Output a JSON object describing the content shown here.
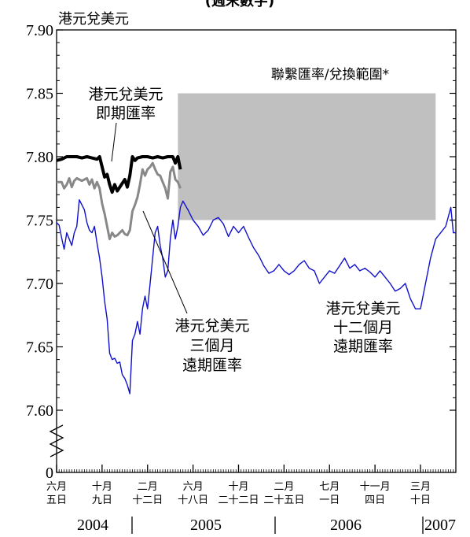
{
  "header": {
    "title": "(週末數字)",
    "y_unit": "港元兌美元"
  },
  "band_label": "聯繫匯率/兌換範圍*",
  "annotations": {
    "spot": [
      "港元兌美元",
      "即期匯率"
    ],
    "three_month": [
      "港元兌美元",
      "三個月",
      "遠期匯率"
    ],
    "twelve_month": [
      "港元兌美元",
      "十二個月",
      "遠期匯率"
    ]
  },
  "x_ticks": [
    {
      "line1": "六月",
      "line2": "五日",
      "x": 0
    },
    {
      "line1": "十月",
      "line2": "九日",
      "x": 18
    },
    {
      "line1": "二月",
      "line2": "十二日",
      "x": 36
    },
    {
      "line1": "六月",
      "line2": "十八日",
      "x": 54
    },
    {
      "line1": "十月",
      "line2": "二十二日",
      "x": 72
    },
    {
      "line1": "二月",
      "line2": "二十五日",
      "x": 90
    },
    {
      "line1": "七月",
      "line2": "一日",
      "x": 108
    },
    {
      "line1": "十一月",
      "line2": "四日",
      "x": 126
    },
    {
      "line1": "三月",
      "line2": "十日",
      "x": 144
    }
  ],
  "years": [
    "2004",
    "2005",
    "2006",
    "2007"
  ],
  "colors": {
    "spot": "#000000",
    "three_month": "#888888",
    "twelve_month": "#1010cc",
    "band": "#c0c0c0"
  },
  "chart_data": {
    "type": "line",
    "y_ticks": [
      "7.90",
      "7.85",
      "7.80",
      "7.75",
      "7.70",
      "7.65",
      "7.60",
      "0"
    ],
    "ylim": [
      7.6,
      7.9
    ],
    "y_break": true,
    "band": {
      "x_from": 48,
      "x_to": 150,
      "y_from": 7.75,
      "y_to": 7.85
    },
    "series": [
      {
        "name": "港元兌美元 即期匯率",
        "key": "spot",
        "points": [
          [
            0,
            7.797
          ],
          [
            2,
            7.798
          ],
          [
            4,
            7.8
          ],
          [
            6,
            7.8
          ],
          [
            8,
            7.8
          ],
          [
            10,
            7.799
          ],
          [
            12,
            7.8
          ],
          [
            14,
            7.799
          ],
          [
            16,
            7.798
          ],
          [
            17,
            7.8
          ],
          [
            18,
            7.792
          ],
          [
            19,
            7.784
          ],
          [
            20,
            7.786
          ],
          [
            21,
            7.778
          ],
          [
            22,
            7.772
          ],
          [
            23,
            7.778
          ],
          [
            24,
            7.773
          ],
          [
            25,
            7.776
          ],
          [
            26,
            7.779
          ],
          [
            27,
            7.782
          ],
          [
            28,
            7.776
          ],
          [
            29,
            7.785
          ],
          [
            30,
            7.8
          ],
          [
            31,
            7.797
          ],
          [
            32,
            7.799
          ],
          [
            34,
            7.8
          ],
          [
            36,
            7.8
          ],
          [
            38,
            7.799
          ],
          [
            40,
            7.8
          ],
          [
            42,
            7.799
          ],
          [
            44,
            7.8
          ],
          [
            45,
            7.8
          ],
          [
            46,
            7.8
          ],
          [
            47,
            7.795
          ],
          [
            48,
            7.8
          ],
          [
            49,
            7.79
          ]
        ]
      },
      {
        "name": "港元兌美元 三個月 遠期匯率",
        "key": "three_month",
        "points": [
          [
            0,
            7.78
          ],
          [
            1,
            7.78
          ],
          [
            2,
            7.78
          ],
          [
            3,
            7.775
          ],
          [
            4,
            7.778
          ],
          [
            5,
            7.783
          ],
          [
            6,
            7.776
          ],
          [
            7,
            7.781
          ],
          [
            8,
            7.783
          ],
          [
            9,
            7.782
          ],
          [
            10,
            7.781
          ],
          [
            11,
            7.782
          ],
          [
            12,
            7.783
          ],
          [
            13,
            7.778
          ],
          [
            14,
            7.782
          ],
          [
            15,
            7.775
          ],
          [
            16,
            7.78
          ],
          [
            17,
            7.775
          ],
          [
            18,
            7.763
          ],
          [
            19,
            7.755
          ],
          [
            20,
            7.745
          ],
          [
            21,
            7.735
          ],
          [
            22,
            7.74
          ],
          [
            23,
            7.737
          ],
          [
            24,
            7.738
          ],
          [
            25,
            7.74
          ],
          [
            26,
            7.742
          ],
          [
            27,
            7.739
          ],
          [
            28,
            7.738
          ],
          [
            29,
            7.742
          ],
          [
            30,
            7.757
          ],
          [
            31,
            7.762
          ],
          [
            32,
            7.768
          ],
          [
            33,
            7.778
          ],
          [
            34,
            7.79
          ],
          [
            35,
            7.785
          ],
          [
            36,
            7.79
          ],
          [
            37,
            7.792
          ],
          [
            38,
            7.795
          ],
          [
            39,
            7.79
          ],
          [
            40,
            7.786
          ],
          [
            41,
            7.785
          ],
          [
            42,
            7.78
          ],
          [
            43,
            7.775
          ],
          [
            44,
            7.767
          ],
          [
            45,
            7.788
          ],
          [
            46,
            7.792
          ],
          [
            47,
            7.782
          ],
          [
            48,
            7.78
          ],
          [
            49,
            7.775
          ]
        ]
      },
      {
        "name": "港元兌美元 十二個月 遠期匯率",
        "key": "twelve_month",
        "points": [
          [
            0,
            7.748
          ],
          [
            1,
            7.746
          ],
          [
            2,
            7.736
          ],
          [
            3,
            7.727
          ],
          [
            4,
            7.74
          ],
          [
            5,
            7.735
          ],
          [
            6,
            7.73
          ],
          [
            7,
            7.74
          ],
          [
            8,
            7.745
          ],
          [
            9,
            7.766
          ],
          [
            10,
            7.762
          ],
          [
            11,
            7.758
          ],
          [
            12,
            7.748
          ],
          [
            13,
            7.742
          ],
          [
            14,
            7.74
          ],
          [
            15,
            7.745
          ],
          [
            16,
            7.732
          ],
          [
            17,
            7.72
          ],
          [
            18,
            7.705
          ],
          [
            19,
            7.686
          ],
          [
            20,
            7.672
          ],
          [
            21,
            7.645
          ],
          [
            22,
            7.64
          ],
          [
            23,
            7.641
          ],
          [
            24,
            7.637
          ],
          [
            25,
            7.638
          ],
          [
            26,
            7.628
          ],
          [
            27,
            7.625
          ],
          [
            28,
            7.62
          ],
          [
            29,
            7.613
          ],
          [
            30,
            7.655
          ],
          [
            31,
            7.66
          ],
          [
            32,
            7.67
          ],
          [
            33,
            7.66
          ],
          [
            34,
            7.68
          ],
          [
            35,
            7.69
          ],
          [
            36,
            7.68
          ],
          [
            37,
            7.7
          ],
          [
            38,
            7.72
          ],
          [
            39,
            7.74
          ],
          [
            40,
            7.745
          ],
          [
            41,
            7.73
          ],
          [
            42,
            7.72
          ],
          [
            43,
            7.705
          ],
          [
            44,
            7.71
          ],
          [
            45,
            7.735
          ],
          [
            46,
            7.75
          ],
          [
            47,
            7.735
          ],
          [
            48,
            7.745
          ],
          [
            49,
            7.76
          ],
          [
            50,
            7.765
          ],
          [
            52,
            7.758
          ],
          [
            54,
            7.75
          ],
          [
            56,
            7.745
          ],
          [
            58,
            7.738
          ],
          [
            60,
            7.742
          ],
          [
            62,
            7.75
          ],
          [
            64,
            7.752
          ],
          [
            66,
            7.747
          ],
          [
            68,
            7.737
          ],
          [
            70,
            7.745
          ],
          [
            72,
            7.74
          ],
          [
            74,
            7.745
          ],
          [
            76,
            7.736
          ],
          [
            78,
            7.728
          ],
          [
            80,
            7.722
          ],
          [
            82,
            7.714
          ],
          [
            84,
            7.708
          ],
          [
            86,
            7.71
          ],
          [
            88,
            7.715
          ],
          [
            90,
            7.71
          ],
          [
            92,
            7.707
          ],
          [
            94,
            7.71
          ],
          [
            96,
            7.715
          ],
          [
            98,
            7.718
          ],
          [
            100,
            7.712
          ],
          [
            102,
            7.71
          ],
          [
            104,
            7.7
          ],
          [
            106,
            7.705
          ],
          [
            108,
            7.71
          ],
          [
            110,
            7.708
          ],
          [
            112,
            7.714
          ],
          [
            114,
            7.72
          ],
          [
            116,
            7.712
          ],
          [
            118,
            7.715
          ],
          [
            120,
            7.71
          ],
          [
            122,
            7.712
          ],
          [
            124,
            7.709
          ],
          [
            126,
            7.705
          ],
          [
            128,
            7.71
          ],
          [
            130,
            7.705
          ],
          [
            132,
            7.7
          ],
          [
            134,
            7.694
          ],
          [
            136,
            7.696
          ],
          [
            138,
            7.7
          ],
          [
            140,
            7.688
          ],
          [
            142,
            7.68
          ],
          [
            144,
            7.68
          ],
          [
            146,
            7.7
          ],
          [
            148,
            7.72
          ],
          [
            150,
            7.735
          ],
          [
            152,
            7.74
          ],
          [
            154,
            7.745
          ],
          [
            156,
            7.76
          ],
          [
            157,
            7.74
          ],
          [
            158,
            7.74
          ]
        ]
      }
    ]
  }
}
